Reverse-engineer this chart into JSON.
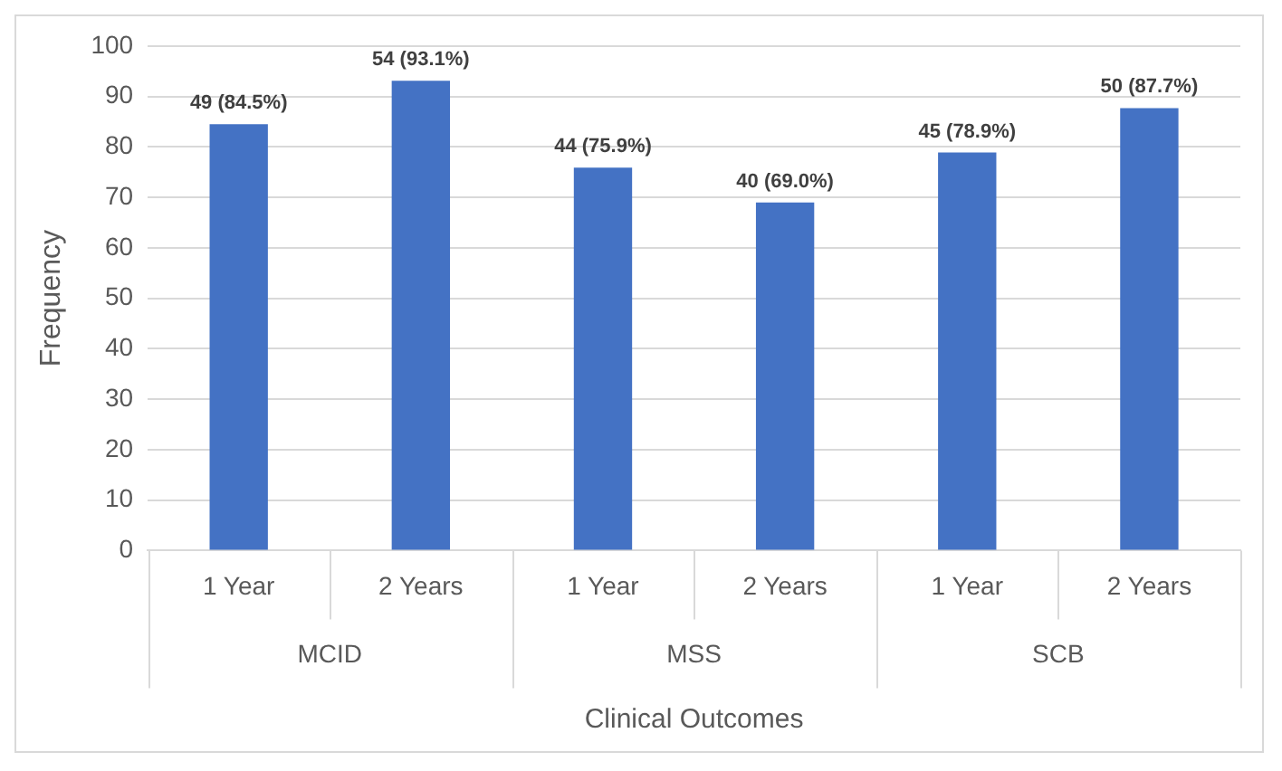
{
  "chart_data": {
    "type": "bar",
    "ylabel": "Frequency",
    "xlabel": "Clinical Outcomes",
    "categories": [
      "1 Year",
      "2 Years",
      "1 Year",
      "2 Years",
      "1 Year",
      "2 Years"
    ],
    "values": [
      84.5,
      93.1,
      75.9,
      69.0,
      78.9,
      87.7
    ],
    "value_labels": [
      "49 (84.5%)",
      "54 (93.1%)",
      "44 (75.9%)",
      "40 (69.0%)",
      "45 (78.9%)",
      "50 (87.7%)"
    ],
    "color": "#4472c4",
    "ylim": [
      0,
      100
    ],
    "yticks": [
      0,
      10,
      20,
      30,
      40,
      50,
      60,
      70,
      80,
      90,
      100
    ],
    "grid": "y",
    "annotations": [
      "MCID",
      "MSS",
      "SCB"
    ]
  }
}
